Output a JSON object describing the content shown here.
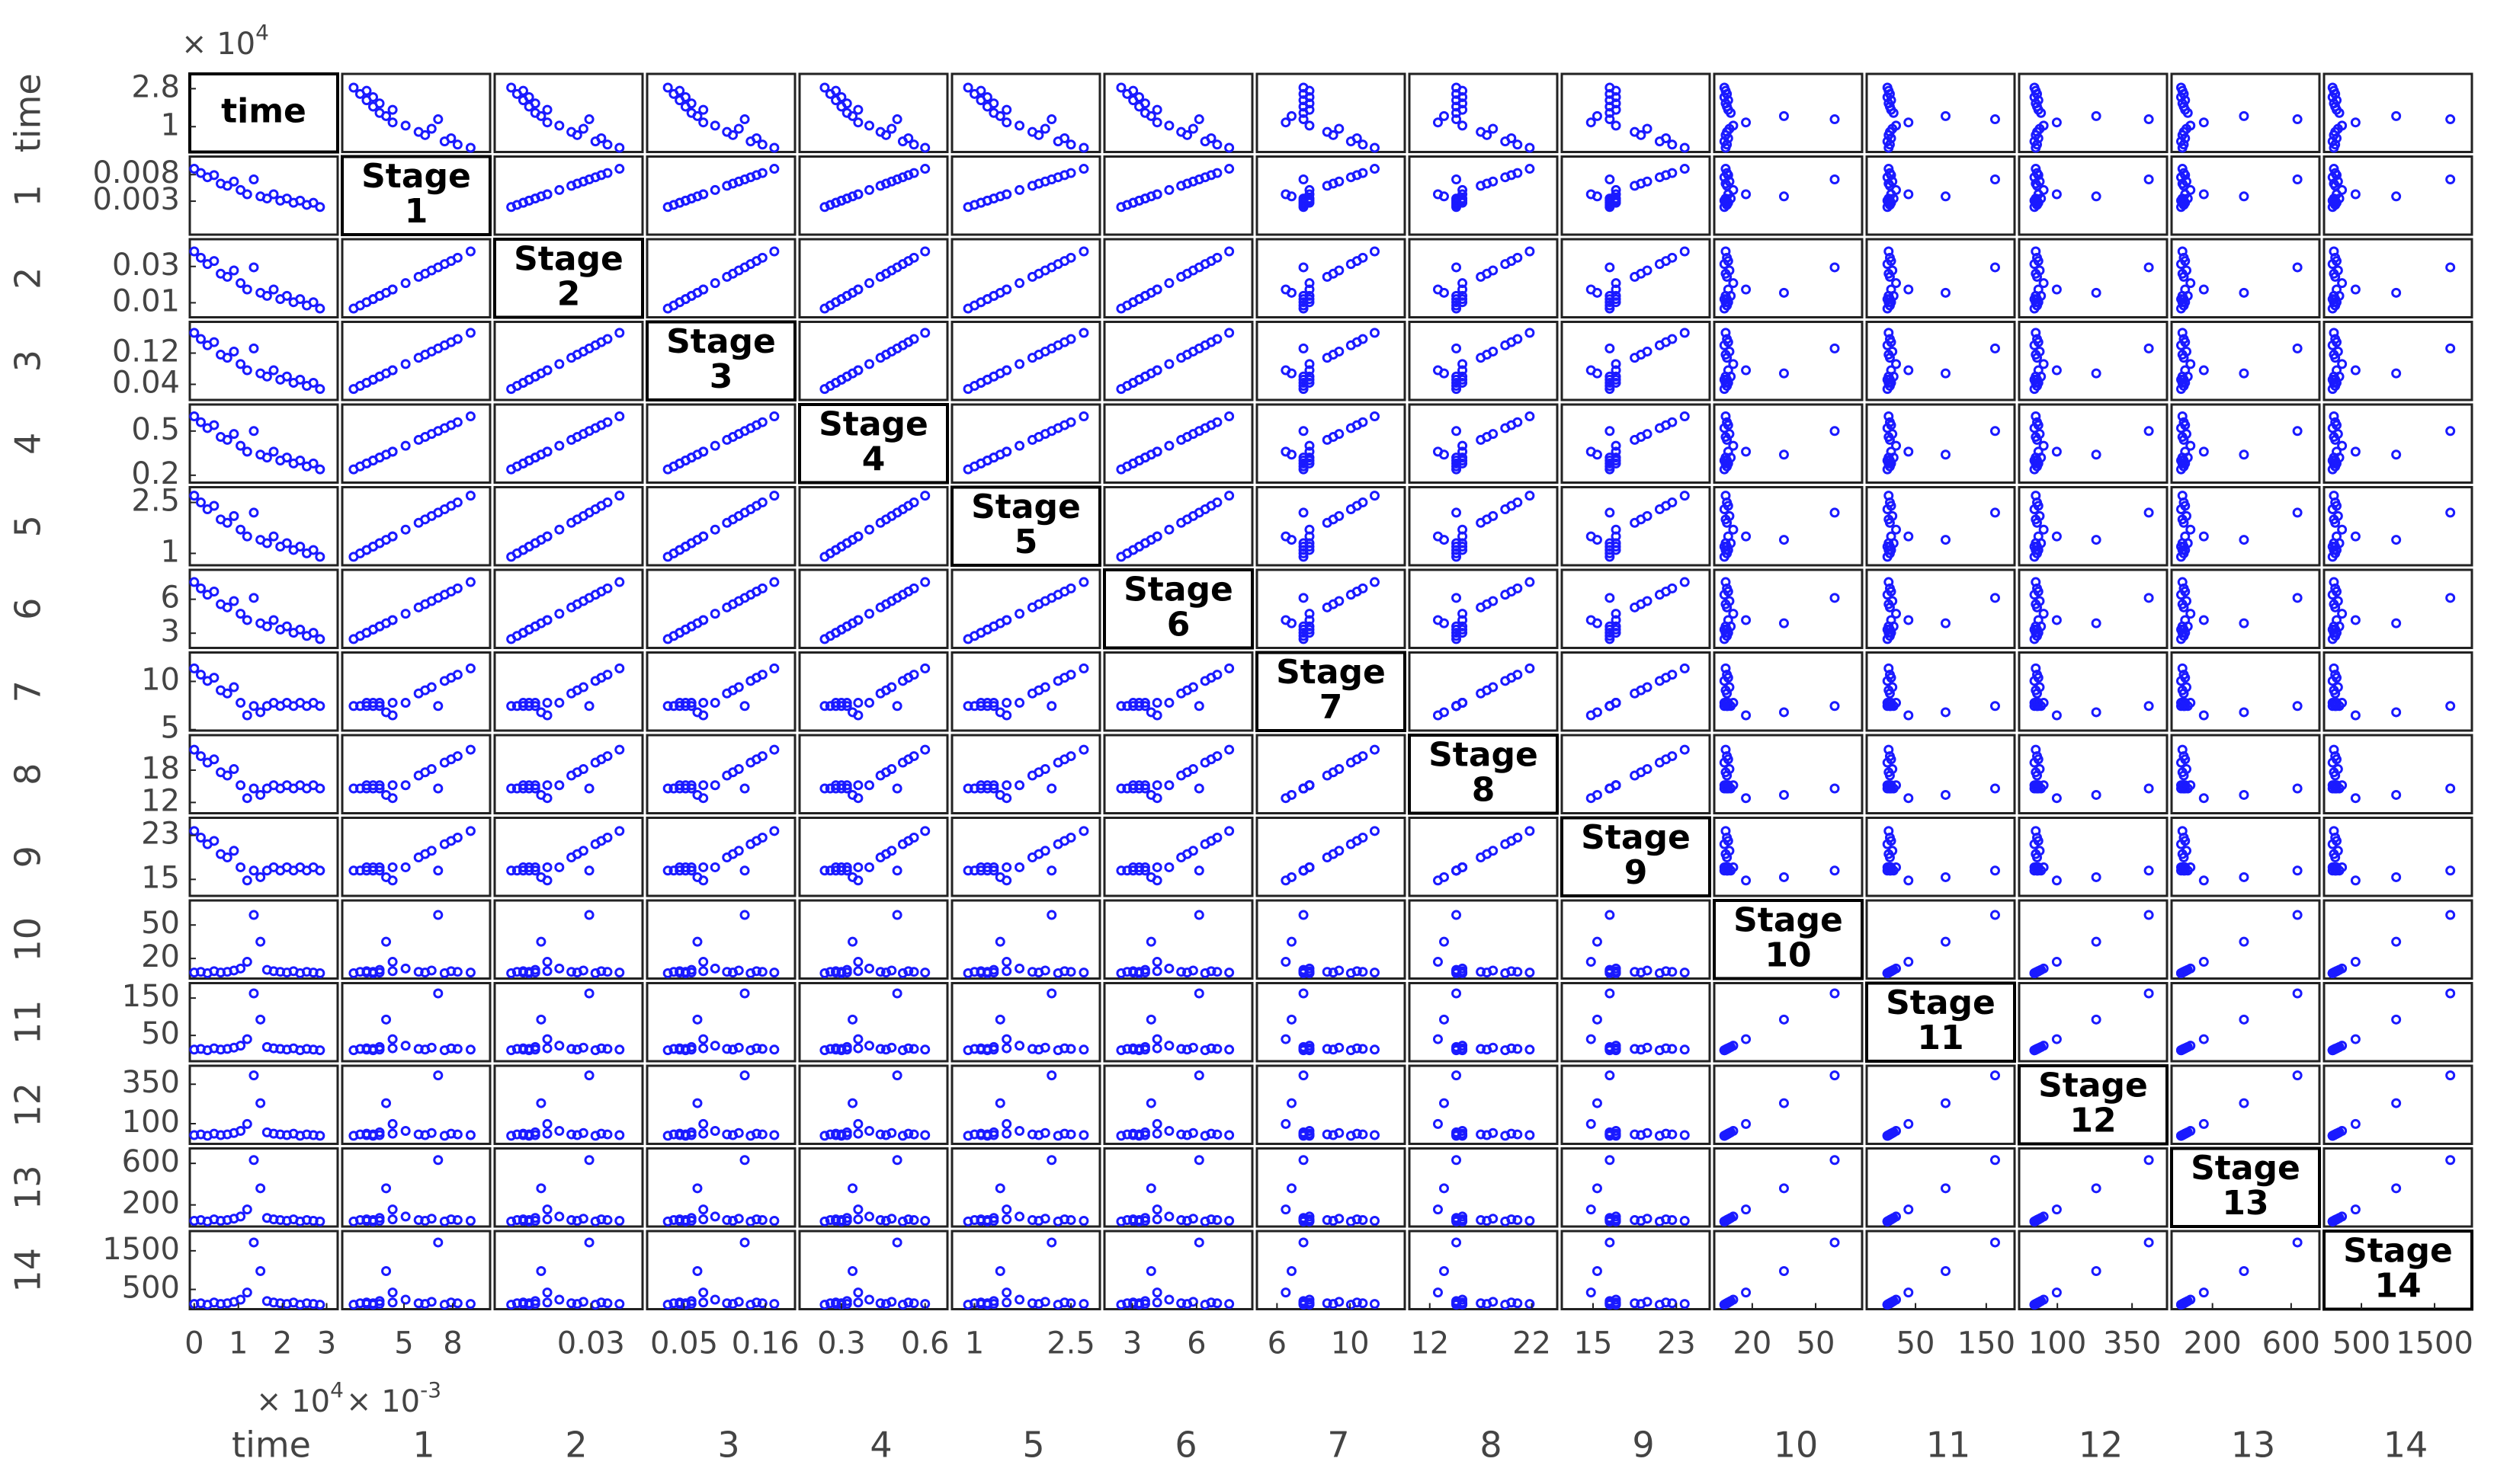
{
  "chart_data": {
    "type": "scatter_matrix",
    "color": "#1a1aff",
    "series": [
      {
        "name": "time",
        "diagonal_label": [
          "time"
        ],
        "xlim": [
          -1000,
          32500
        ],
        "ylim": [
          -2000,
          35000
        ],
        "xticks": [
          0,
          {
            "value": 10000,
            "label": "1"
          },
          {
            "value": 20000,
            "label": "2"
          },
          {
            "value": 30000,
            "label": "3"
          }
        ],
        "yticks": [
          {
            "value": 28000,
            "label": "2.8"
          },
          {
            "value": 10000,
            "label": "1"
          }
        ],
        "x_exponent": {
          "base": "× 10",
          "power": "4"
        },
        "y_exponent": {
          "base": "× 10",
          "power": "4"
        },
        "values": [
          0,
          1500,
          3000,
          4500,
          6000,
          7500,
          9000,
          10500,
          12000,
          13500,
          15000,
          16500,
          18000,
          19500,
          21000,
          22500,
          24000,
          25500,
          27000,
          28500
        ]
      },
      {
        "name": "1",
        "diagonal_label": [
          "Stage",
          "1"
        ],
        "xlim": [
          0.0012,
          0.0103
        ],
        "ylim": [
          -0.0033,
          0.0114
        ],
        "xticks": [
          {
            "value": 0.005,
            "label": "5"
          },
          {
            "value": 0.008,
            "label": "8"
          }
        ],
        "yticks": [
          0.008,
          0.003
        ],
        "x_exponent": {
          "base": "× 10",
          "power": "-3"
        },
        "values": [
          0.0091,
          0.0083,
          0.0075,
          0.0079,
          0.0063,
          0.0059,
          0.0067,
          0.0051,
          0.0043,
          0.0071,
          0.0039,
          0.0035,
          0.0043,
          0.0031,
          0.0035,
          0.0027,
          0.0031,
          0.0023,
          0.0027,
          0.0019
        ]
      },
      {
        "name": "2",
        "diagonal_label": [
          "Stage",
          "2"
        ],
        "xlim": [
          0.002,
          0.045
        ],
        "ylim": [
          0.002,
          0.045
        ],
        "xticks": [
          0.03
        ],
        "yticks": [
          0.03,
          0.01
        ],
        "values": [
          0.0383,
          0.0348,
          0.0313,
          0.033,
          0.026,
          0.0243,
          0.0278,
          0.0208,
          0.0173,
          0.0295,
          0.0155,
          0.0138,
          0.0173,
          0.012,
          0.0138,
          0.0103,
          0.012,
          0.0085,
          0.0103,
          0.0068
        ]
      },
      {
        "name": "3",
        "diagonal_label": [
          "Stage",
          "3"
        ],
        "xlim": [
          0,
          0.2
        ],
        "ylim": [
          0,
          0.2
        ],
        "xticks": [
          0.05,
          0.16
        ],
        "yticks": [
          0.12,
          0.04
        ],
        "values": [
          0.172,
          0.156,
          0.14,
          0.148,
          0.116,
          0.108,
          0.124,
          0.092,
          0.076,
          0.132,
          0.068,
          0.06,
          0.076,
          0.052,
          0.06,
          0.044,
          0.052,
          0.036,
          0.044,
          0.028
        ]
      },
      {
        "name": "4",
        "diagonal_label": [
          "Stage",
          "4"
        ],
        "xlim": [
          0.15,
          0.68
        ],
        "ylim": [
          0.15,
          0.68
        ],
        "xticks": [
          0.3,
          0.6
        ],
        "yticks": [
          0.5,
          0.2
        ],
        "values": [
          0.6,
          0.56,
          0.52,
          0.54,
          0.46,
          0.44,
          0.48,
          0.4,
          0.36,
          0.5,
          0.34,
          0.32,
          0.36,
          0.3,
          0.32,
          0.28,
          0.3,
          0.26,
          0.28,
          0.24
        ]
      },
      {
        "name": "5",
        "diagonal_label": [
          "Stage",
          "5"
        ],
        "xlim": [
          0.65,
          2.95
        ],
        "ylim": [
          0.65,
          2.95
        ],
        "xticks": [
          1,
          2.5
        ],
        "yticks": [
          2.5,
          1
        ],
        "values": [
          2.7,
          2.5,
          2.3,
          2.4,
          2.0,
          1.9,
          2.1,
          1.7,
          1.5,
          2.2,
          1.4,
          1.3,
          1.5,
          1.2,
          1.3,
          1.1,
          1.2,
          1.0,
          1.1,
          0.9
        ]
      },
      {
        "name": "6",
        "diagonal_label": [
          "Stage",
          "6"
        ],
        "xlim": [
          1.7,
          8.6
        ],
        "ylim": [
          1.7,
          8.6
        ],
        "xticks": [
          3,
          6
        ],
        "yticks": [
          6,
          3
        ],
        "values": [
          7.52,
          6.96,
          6.4,
          6.68,
          5.56,
          5.28,
          5.84,
          4.72,
          4.16,
          6.12,
          3.88,
          3.6,
          4.16,
          3.32,
          3.6,
          3.04,
          3.32,
          2.76,
          3.04,
          2.48
        ]
      },
      {
        "name": "7",
        "diagonal_label": [
          "Stage",
          "7"
        ],
        "xlim": [
          4.9,
          13
        ],
        "ylim": [
          4.9,
          13
        ],
        "xticks": [
          6,
          10
        ],
        "yticks": [
          10,
          5
        ],
        "values": [
          11.35,
          10.7,
          10.05,
          10.38,
          9.08,
          8.75,
          9.4,
          7.78,
          6.48,
          7.45,
          6.8,
          7.45,
          7.78,
          7.45,
          7.78,
          7.45,
          7.78,
          7.45,
          7.78,
          7.45
        ]
      },
      {
        "name": "8",
        "diagonal_label": [
          "Stage",
          "8"
        ],
        "xlim": [
          10,
          24.5
        ],
        "ylim": [
          10,
          24.5
        ],
        "xticks": [
          12,
          22
        ],
        "yticks": [
          18,
          12
        ],
        "values": [
          21.8,
          20.6,
          19.4,
          20,
          17.6,
          17,
          18.2,
          15.2,
          12.8,
          14.6,
          13.4,
          14.6,
          15.2,
          14.6,
          15.2,
          14.6,
          15.2,
          14.6,
          15.2,
          14.6
        ]
      },
      {
        "name": "9",
        "diagonal_label": [
          "Stage",
          "9"
        ],
        "xlim": [
          12,
          26.2
        ],
        "ylim": [
          12,
          26.2
        ],
        "xticks": [
          15,
          23
        ],
        "yticks": [
          23,
          15
        ],
        "values": [
          23.8,
          22.6,
          21.4,
          22,
          19.6,
          19,
          20.2,
          17.2,
          14.8,
          16.6,
          15.4,
          16.6,
          17.2,
          16.6,
          17.2,
          16.6,
          17.2,
          16.6,
          17.2,
          16.6
        ]
      },
      {
        "name": "10",
        "diagonal_label": [
          "Stage",
          "10"
        ],
        "xlim": [
          2,
          72
        ],
        "ylim": [
          2,
          72
        ],
        "xticks": [
          20,
          50
        ],
        "yticks": [
          50,
          20
        ],
        "values": [
          7.4,
          8,
          6.8,
          8.6,
          7.4,
          8,
          9.2,
          11,
          17,
          59,
          35,
          9.8,
          8.6,
          8,
          7.4,
          8.6,
          6.8,
          8,
          7.4,
          6.8
        ]
      },
      {
        "name": "11",
        "diagonal_label": [
          "Stage",
          "11"
        ],
        "xlim": [
          -19,
          190
        ],
        "ylim": [
          -19,
          190
        ],
        "xticks": [
          50,
          150
        ],
        "yticks": [
          150,
          50
        ],
        "values": [
          12,
          13.8,
          10.3,
          15.5,
          12,
          13.8,
          17.3,
          22.5,
          40,
          162.5,
          92.5,
          19,
          15.5,
          13.8,
          12,
          15.5,
          10.3,
          13.8,
          12,
          10.3
        ]
      },
      {
        "name": "12",
        "diagonal_label": [
          "Stage",
          "12"
        ],
        "xlim": [
          -28,
          467
        ],
        "ylim": [
          -28,
          467
        ],
        "xticks": [
          100,
          350
        ],
        "yticks": [
          350,
          100
        ],
        "values": [
          27.6,
          32,
          23.2,
          36.4,
          27.6,
          32,
          40.8,
          54,
          98,
          406,
          230,
          45.2,
          36.4,
          32,
          27.6,
          36.4,
          23.2,
          32,
          27.6,
          23.2
        ]
      },
      {
        "name": "13",
        "diagonal_label": [
          "Stage",
          "13"
        ],
        "xlim": [
          -8,
          744
        ],
        "ylim": [
          -8,
          744
        ],
        "xticks": [
          200,
          600
        ],
        "yticks": [
          600,
          200
        ],
        "values": [
          47.2,
          54,
          40.4,
          60.8,
          47.2,
          54,
          67.6,
          88,
          156,
          632,
          360,
          74.4,
          60.8,
          54,
          47.2,
          60.8,
          40.4,
          54,
          47.2,
          40.4
        ]
      },
      {
        "name": "14",
        "diagonal_label": [
          "Stage",
          "14"
        ],
        "xlim": [
          -11,
          2010
        ],
        "ylim": [
          -11,
          2010
        ],
        "xticks": [
          500,
          1500
        ],
        "yticks": [
          1500,
          500
        ],
        "values": [
          124,
          142,
          106,
          161,
          124,
          142,
          180,
          235,
          420,
          1715,
          975,
          198,
          161,
          142,
          124,
          161,
          106,
          142,
          124,
          106
        ]
      }
    ]
  }
}
